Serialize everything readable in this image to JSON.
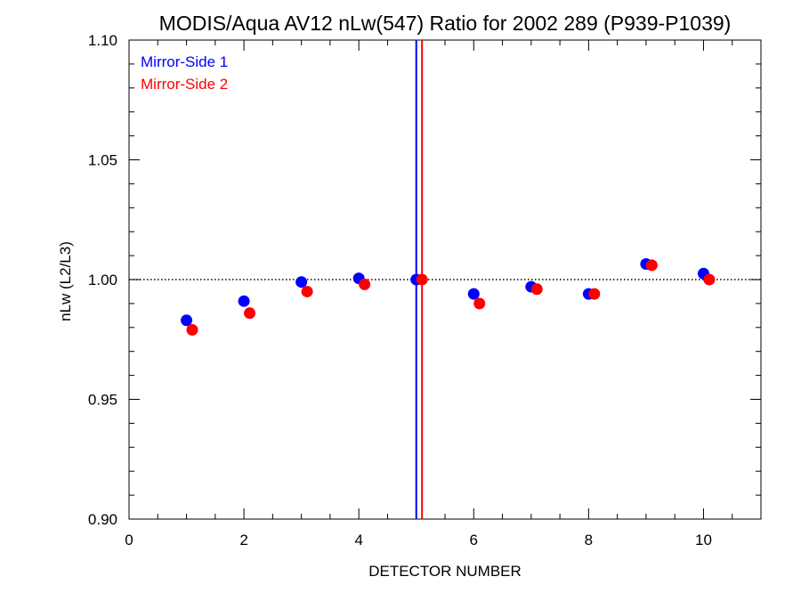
{
  "chart_data": {
    "type": "scatter",
    "title": "MODIS/Aqua AV12 nLw(547) Ratio for 2002 289 (P939-P1039)",
    "xlabel": "DETECTOR NUMBER",
    "ylabel": "nLw (L2/L3)",
    "xlim": [
      0,
      11
    ],
    "ylim": [
      0.9,
      1.1
    ],
    "xticks": [
      0,
      2,
      4,
      6,
      8,
      10
    ],
    "xtick_labels": [
      "0",
      "2",
      "4",
      "6",
      "8",
      "10"
    ],
    "yticks": [
      0.9,
      0.95,
      1.0,
      1.05,
      1.1
    ],
    "ytick_labels": [
      "0.90",
      "0.95",
      "1.00",
      "1.05",
      "1.10"
    ],
    "reference_line": {
      "y": 1.0,
      "style": "dotted"
    },
    "vertical_lines": [
      {
        "x": 5.0,
        "color": "#0000ff"
      },
      {
        "x": 5.1,
        "color": "#ff0000"
      }
    ],
    "legend_position": "top-left",
    "series": [
      {
        "name": "Mirror-Side 1",
        "color": "#0000ff",
        "x": [
          1,
          2,
          3,
          4,
          5,
          6,
          7,
          8,
          9,
          10
        ],
        "y": [
          0.983,
          0.991,
          0.999,
          1.0005,
          1.0,
          0.994,
          0.997,
          0.994,
          1.0065,
          1.0025
        ]
      },
      {
        "name": "Mirror-Side 2",
        "color": "#ff0000",
        "x": [
          1.1,
          2.1,
          3.1,
          4.1,
          5.1,
          6.1,
          7.1,
          8.1,
          9.1,
          10.1
        ],
        "y": [
          0.979,
          0.986,
          0.995,
          0.998,
          1.0,
          0.99,
          0.996,
          0.994,
          1.006,
          1.0
        ]
      }
    ]
  }
}
